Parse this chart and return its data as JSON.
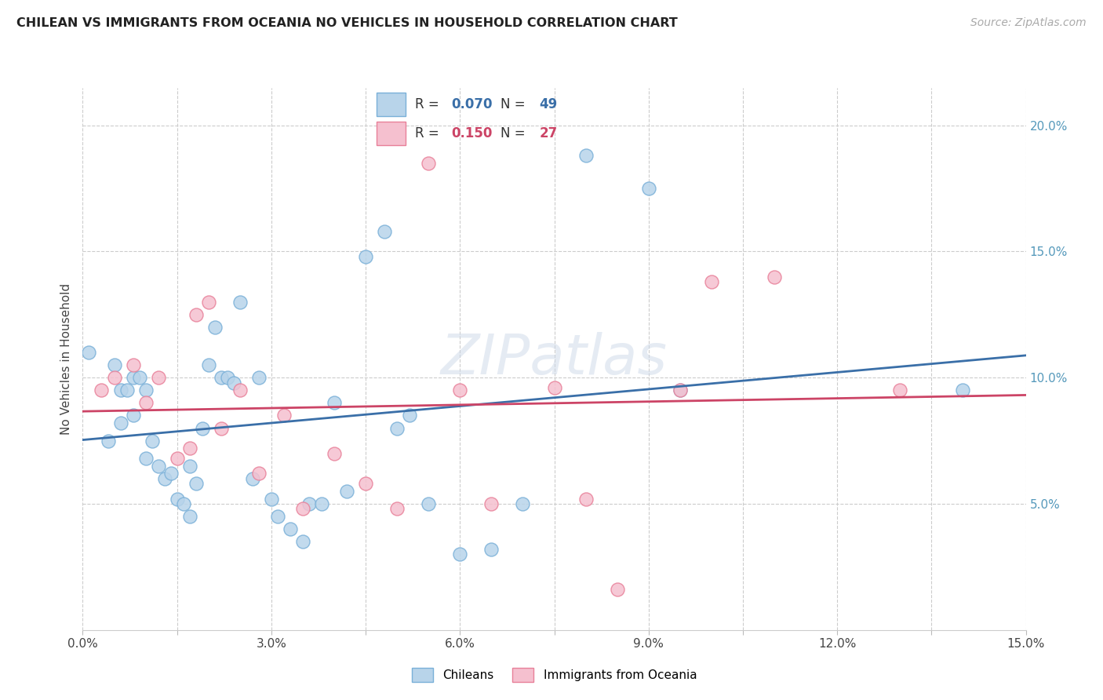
{
  "title": "CHILEAN VS IMMIGRANTS FROM OCEANIA NO VEHICLES IN HOUSEHOLD CORRELATION CHART",
  "source": "Source: ZipAtlas.com",
  "ylabel": "No Vehicles in Household",
  "xlim": [
    0.0,
    0.15
  ],
  "ylim": [
    0.0,
    0.215
  ],
  "xticks": [
    0.0,
    0.015,
    0.03,
    0.045,
    0.06,
    0.075,
    0.09,
    0.105,
    0.12,
    0.135,
    0.15
  ],
  "xtick_labels": [
    "0.0%",
    "",
    "3.0%",
    "",
    "6.0%",
    "",
    "9.0%",
    "",
    "12.0%",
    "",
    "15.0%"
  ],
  "yticks": [
    0.05,
    0.1,
    0.15,
    0.2
  ],
  "ytick_labels": [
    "5.0%",
    "10.0%",
    "15.0%",
    "20.0%"
  ],
  "blue_R": 0.07,
  "blue_N": 49,
  "pink_R": 0.15,
  "pink_N": 27,
  "blue_fill": "#b8d4ea",
  "blue_edge": "#7ab0d8",
  "pink_fill": "#f5c0cf",
  "pink_edge": "#e88099",
  "blue_line": "#3a6fa8",
  "pink_line": "#cc4466",
  "tick_color": "#5599bb",
  "blue_x": [
    0.001,
    0.004,
    0.005,
    0.006,
    0.006,
    0.007,
    0.008,
    0.008,
    0.009,
    0.01,
    0.01,
    0.011,
    0.012,
    0.013,
    0.014,
    0.015,
    0.016,
    0.017,
    0.017,
    0.018,
    0.019,
    0.02,
    0.021,
    0.022,
    0.023,
    0.024,
    0.025,
    0.027,
    0.028,
    0.03,
    0.031,
    0.033,
    0.035,
    0.036,
    0.038,
    0.04,
    0.042,
    0.045,
    0.048,
    0.05,
    0.052,
    0.055,
    0.06,
    0.065,
    0.07,
    0.08,
    0.09,
    0.095,
    0.14
  ],
  "blue_y": [
    0.11,
    0.075,
    0.105,
    0.095,
    0.082,
    0.095,
    0.1,
    0.085,
    0.1,
    0.095,
    0.068,
    0.075,
    0.065,
    0.06,
    0.062,
    0.052,
    0.05,
    0.045,
    0.065,
    0.058,
    0.08,
    0.105,
    0.12,
    0.1,
    0.1,
    0.098,
    0.13,
    0.06,
    0.1,
    0.052,
    0.045,
    0.04,
    0.035,
    0.05,
    0.05,
    0.09,
    0.055,
    0.148,
    0.158,
    0.08,
    0.085,
    0.05,
    0.03,
    0.032,
    0.05,
    0.188,
    0.175,
    0.095,
    0.095
  ],
  "pink_x": [
    0.003,
    0.005,
    0.008,
    0.01,
    0.012,
    0.015,
    0.017,
    0.018,
    0.02,
    0.022,
    0.025,
    0.028,
    0.032,
    0.035,
    0.04,
    0.045,
    0.05,
    0.055,
    0.06,
    0.065,
    0.075,
    0.08,
    0.085,
    0.095,
    0.1,
    0.11,
    0.13
  ],
  "pink_y": [
    0.095,
    0.1,
    0.105,
    0.09,
    0.1,
    0.068,
    0.072,
    0.125,
    0.13,
    0.08,
    0.095,
    0.062,
    0.085,
    0.048,
    0.07,
    0.058,
    0.048,
    0.185,
    0.095,
    0.05,
    0.096,
    0.052,
    0.016,
    0.095,
    0.138,
    0.14,
    0.095
  ]
}
